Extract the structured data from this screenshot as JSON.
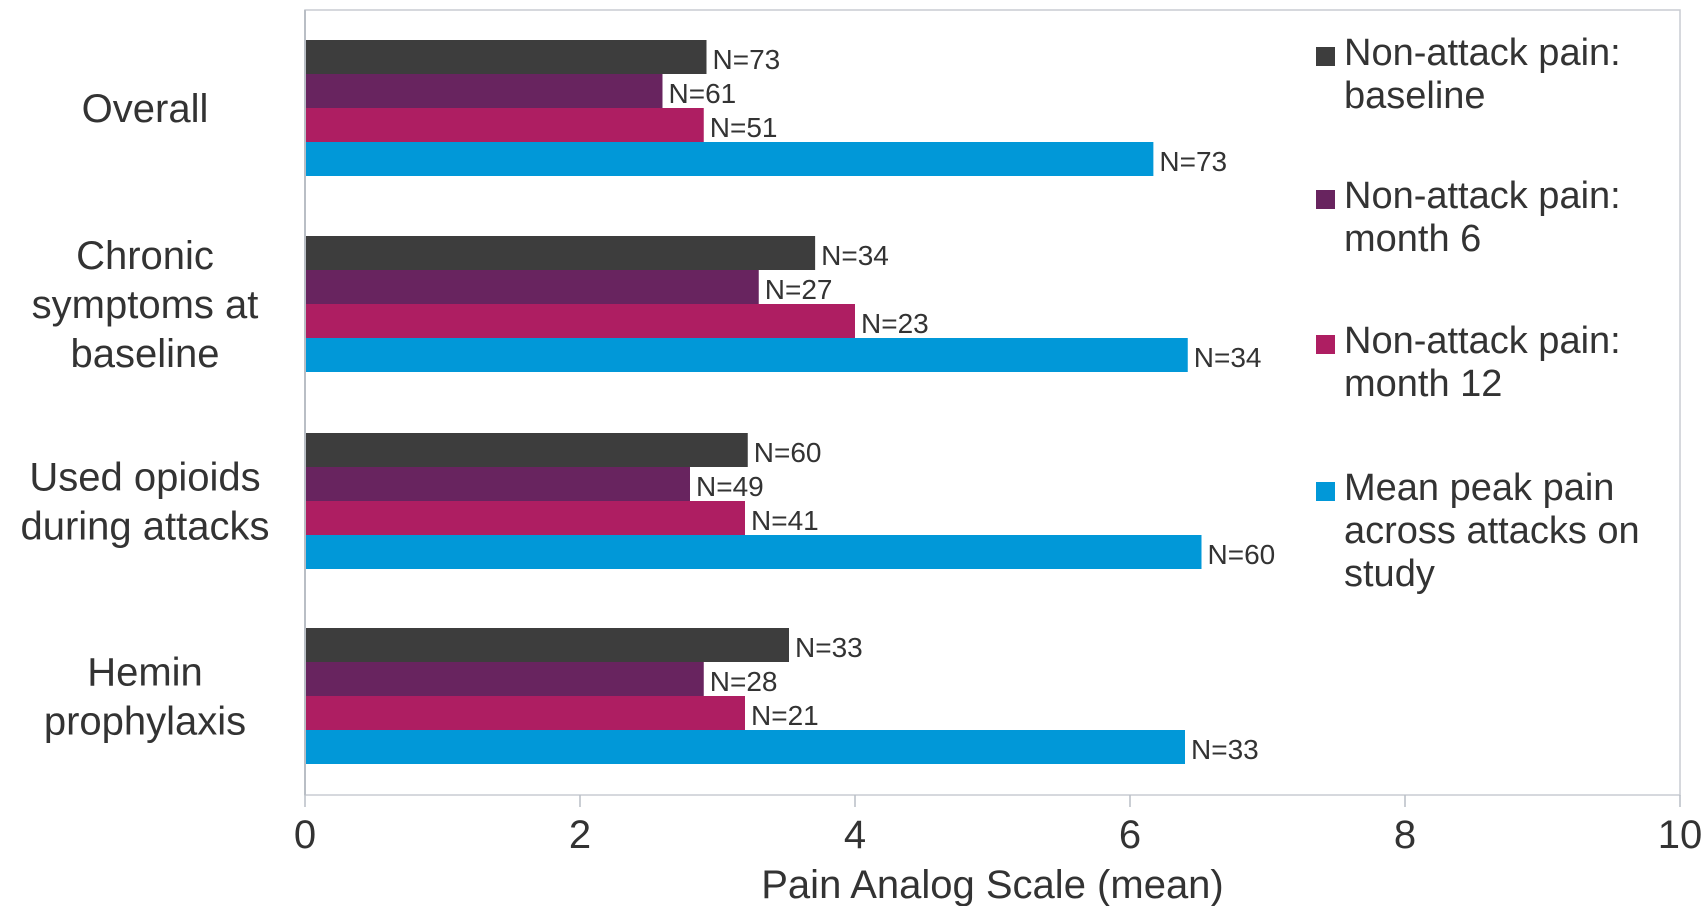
{
  "chart_data": {
    "type": "bar",
    "orientation": "horizontal",
    "title": "",
    "xlabel": "Pain Analog Scale (mean)",
    "ylabel": "",
    "xlim": [
      0,
      10
    ],
    "x_ticks": [
      0,
      2,
      4,
      6,
      8,
      10
    ],
    "grid": false,
    "legend_position": "right",
    "categories": [
      [
        "Overall"
      ],
      [
        "Chronic",
        "symptoms at",
        "baseline"
      ],
      [
        "Used opioids",
        "during attacks"
      ],
      [
        "Hemin",
        "prophylaxis"
      ]
    ],
    "series": [
      {
        "name": [
          "Non-attack pain:",
          "baseline"
        ],
        "color": "#3d3d3d",
        "values": [
          2.92,
          3.71,
          3.22,
          3.52
        ],
        "labels": [
          "N=73",
          "N=34",
          "N=60",
          "N=33"
        ]
      },
      {
        "name": [
          "Non-attack pain:",
          "month 6"
        ],
        "color": "#68245f",
        "values": [
          2.6,
          3.3,
          2.8,
          2.9
        ],
        "labels": [
          "N=61",
          "N=27",
          "N=49",
          "N=28"
        ]
      },
      {
        "name": [
          "Non-attack pain:",
          "month 12"
        ],
        "color": "#ae1e62",
        "values": [
          2.9,
          4.0,
          3.2,
          3.2
        ],
        "labels": [
          "N=51",
          "N=23",
          "N=41",
          "N=21"
        ]
      },
      {
        "name": [
          "Mean peak pain",
          "across attacks on",
          "study"
        ],
        "color": "#0198d8",
        "values": [
          6.17,
          6.42,
          6.52,
          6.4
        ],
        "labels": [
          "N=73",
          "N=34",
          "N=60",
          "N=33"
        ]
      }
    ]
  }
}
